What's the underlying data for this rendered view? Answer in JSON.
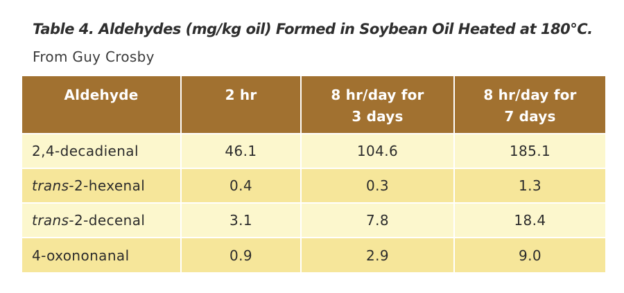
{
  "title": "Table 4. Aldehydes (mg/kg oil) Formed in Soybean Oil Heated at 180°C.",
  "subtitle": "From Guy Crosby",
  "table": {
    "headers": [
      "Aldehyde",
      "2 hr",
      "8 hr/day for",
      "8 hr/day for"
    ],
    "headers_line2": [
      "",
      "",
      "3 days",
      "7 days"
    ],
    "rows": [
      {
        "prefix": "",
        "name": "2,4-decadienal",
        "values": [
          "46.1",
          "104.6",
          "185.1"
        ]
      },
      {
        "prefix": "trans",
        "name": "-2-hexenal",
        "values": [
          "0.4",
          "0.3",
          "1.3"
        ]
      },
      {
        "prefix": "trans",
        "name": "-2-decenal",
        "values": [
          "3.1",
          "7.8",
          "18.4"
        ]
      },
      {
        "prefix": "",
        "name": "4-oxononanal",
        "values": [
          "0.9",
          "2.9",
          "9.0"
        ]
      }
    ]
  },
  "colors": {
    "header_bg": "#a17130",
    "row_light": "#fcf7cd",
    "row_dark": "#f6e69a"
  }
}
